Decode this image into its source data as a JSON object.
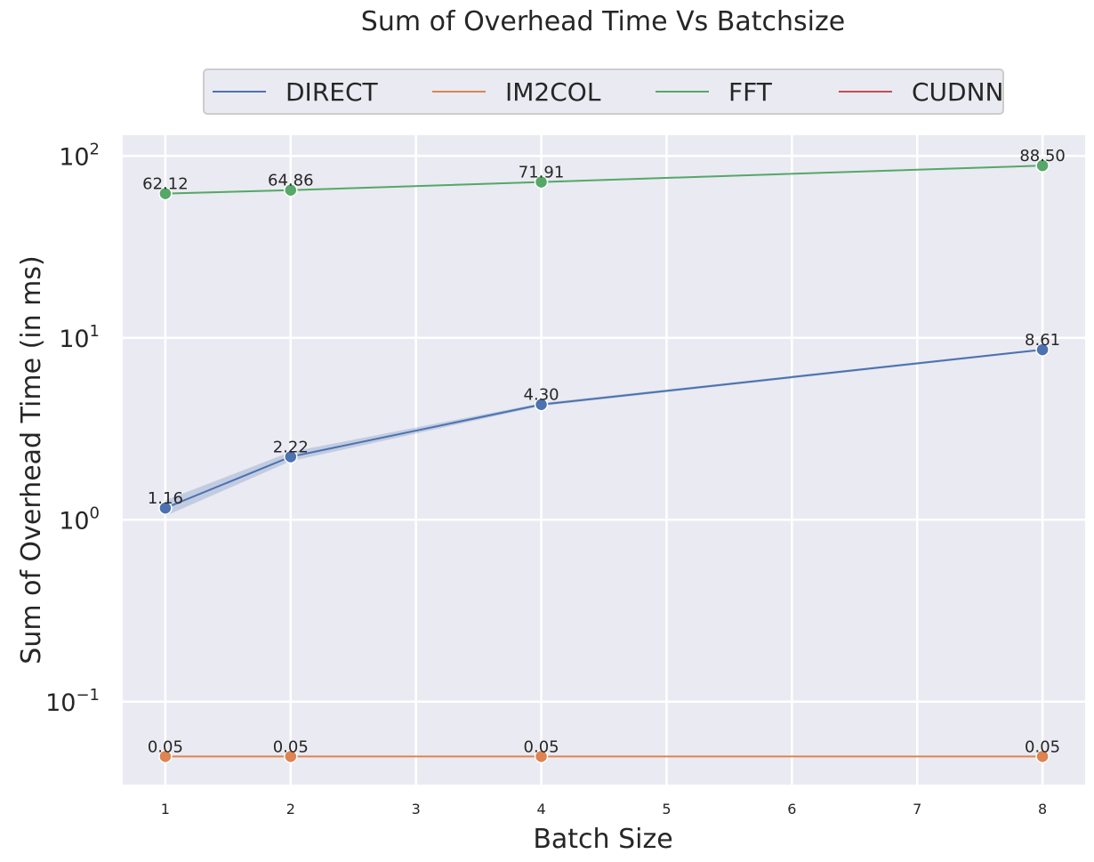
{
  "chart_data": {
    "type": "line",
    "title": "Sum of Overhead Time Vs Batchsize",
    "xlabel": "Batch Size",
    "ylabel": "Sum of Overhead Time (in ms)",
    "yscale": "log",
    "xlim": [
      0.66,
      8.34
    ],
    "ylim": [
      0.035,
      130
    ],
    "xticks": [
      1,
      2,
      3,
      4,
      5,
      6,
      7,
      8
    ],
    "yticks": [
      {
        "value": 0.1,
        "base": "10",
        "exp": "−1"
      },
      {
        "value": 1,
        "base": "10",
        "exp": "0"
      },
      {
        "value": 10,
        "base": "10",
        "exp": "1"
      },
      {
        "value": 100,
        "base": "10",
        "exp": "2"
      }
    ],
    "grid": true,
    "legend_position": "top-center",
    "series": [
      {
        "name": "DIRECT",
        "color": "#4c72b0",
        "points": [
          {
            "x": 1,
            "y": 1.16,
            "label": "1.16",
            "lo": 1.05,
            "hi": 1.28
          },
          {
            "x": 2,
            "y": 2.22,
            "label": "2.22",
            "lo": 2.1,
            "hi": 2.36
          },
          {
            "x": 4,
            "y": 4.3,
            "label": "4.30",
            "lo": 4.22,
            "hi": 4.38
          },
          {
            "x": 8,
            "y": 8.61,
            "label": "8.61",
            "lo": 8.5,
            "hi": 8.72
          }
        ]
      },
      {
        "name": "IM2COL",
        "color": "#dd8452",
        "points": [
          {
            "x": 1,
            "y": 0.05,
            "label": "0.05"
          },
          {
            "x": 2,
            "y": 0.05,
            "label": "0.05"
          },
          {
            "x": 4,
            "y": 0.05,
            "label": "0.05"
          },
          {
            "x": 8,
            "y": 0.05,
            "label": "0.05"
          }
        ]
      },
      {
        "name": "FFT",
        "color": "#55a868",
        "points": [
          {
            "x": 1,
            "y": 62.12,
            "label": "62.12",
            "lo": 61.4,
            "hi": 62.8
          },
          {
            "x": 2,
            "y": 64.86,
            "label": "64.86",
            "lo": 64.2,
            "hi": 65.5
          },
          {
            "x": 4,
            "y": 71.91,
            "label": "71.91",
            "lo": 71.2,
            "hi": 72.6
          },
          {
            "x": 8,
            "y": 88.5,
            "label": "88.50",
            "lo": 87.7,
            "hi": 89.3
          }
        ]
      },
      {
        "name": "CUDNN",
        "color": "#c44e52",
        "points": []
      }
    ]
  }
}
